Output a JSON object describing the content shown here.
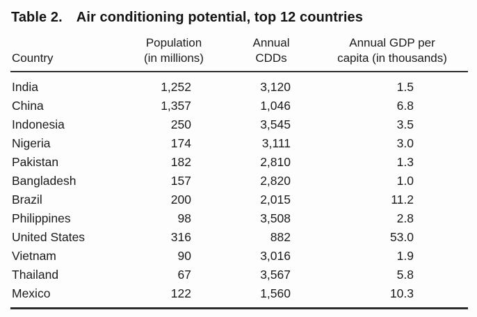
{
  "table": {
    "title_label": "Table 2.",
    "title": "Air conditioning potential, top 12 countries",
    "columns": [
      {
        "line1": "",
        "line2": "Country"
      },
      {
        "line1": "Population",
        "line2": "(in millions)"
      },
      {
        "line1": "Annual",
        "line2": "CDDs"
      },
      {
        "line1": "Annual GDP per",
        "line2": "capita (in thousands)"
      }
    ],
    "rows": [
      {
        "country": "India",
        "population": "1,252",
        "cdds": "3,120",
        "gdp": "1.5"
      },
      {
        "country": "China",
        "population": "1,357",
        "cdds": "1,046",
        "gdp": "6.8"
      },
      {
        "country": "Indonesia",
        "population": "250",
        "cdds": "3,545",
        "gdp": "3.5"
      },
      {
        "country": "Nigeria",
        "population": "174",
        "cdds": "3,111",
        "gdp": "3.0"
      },
      {
        "country": "Pakistan",
        "population": "182",
        "cdds": "2,810",
        "gdp": "1.3"
      },
      {
        "country": "Bangladesh",
        "population": "157",
        "cdds": "2,820",
        "gdp": "1.0"
      },
      {
        "country": "Brazil",
        "population": "200",
        "cdds": "2,015",
        "gdp": "11.2"
      },
      {
        "country": "Philippines",
        "population": "98",
        "cdds": "3,508",
        "gdp": "2.8"
      },
      {
        "country": "United States",
        "population": "316",
        "cdds": "882",
        "gdp": "53.0"
      },
      {
        "country": "Vietnam",
        "population": "90",
        "cdds": "3,016",
        "gdp": "1.9"
      },
      {
        "country": "Thailand",
        "population": "67",
        "cdds": "3,567",
        "gdp": "5.8"
      },
      {
        "country": "Mexico",
        "population": "122",
        "cdds": "1,560",
        "gdp": "10.3"
      }
    ]
  },
  "colors": {
    "text": "#1a1a1a",
    "rule": "#2b2b2b",
    "background": "#fdfdfd"
  }
}
